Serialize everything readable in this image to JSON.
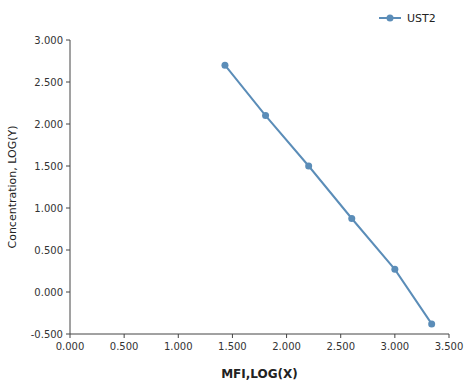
{
  "chart_data": {
    "type": "line",
    "x": [
      1.431,
      1.806,
      2.204,
      2.602,
      3.0,
      3.34
    ],
    "series": [
      {
        "name": "UST2",
        "color": "#5b8db8",
        "marker": "circle",
        "line_style": "solid",
        "values": [
          2.7,
          2.1,
          1.5,
          0.875,
          0.27,
          -0.38
        ]
      }
    ],
    "xlabel": "MFI,LOG(X)",
    "ylabel": "Concentration, LOG(Y)",
    "xlim": [
      0.0,
      3.5
    ],
    "ylim": [
      -0.5,
      3.0
    ],
    "xticks": [
      {
        "value": 0,
        "label": "0.000"
      },
      {
        "value": 0.5,
        "label": "0.500"
      },
      {
        "value": 1,
        "label": "1.000"
      },
      {
        "value": 1.5,
        "label": "1.500"
      },
      {
        "value": 2,
        "label": "2.000"
      },
      {
        "value": 2.5,
        "label": "2.500"
      },
      {
        "value": 3,
        "label": "3.000"
      },
      {
        "value": 3.5,
        "label": "3.500"
      }
    ],
    "yticks": [
      {
        "value": -0.5,
        "label": "-0.500"
      },
      {
        "value": 0,
        "label": "0.000"
      },
      {
        "value": 0.5,
        "label": "0.500"
      },
      {
        "value": 1,
        "label": "1.000"
      },
      {
        "value": 1.5,
        "label": "1.500"
      },
      {
        "value": 2,
        "label": "2.000"
      },
      {
        "value": 2.5,
        "label": "2.500"
      },
      {
        "value": 3,
        "label": "3.000"
      }
    ],
    "grid": false,
    "legend": "upper right"
  }
}
